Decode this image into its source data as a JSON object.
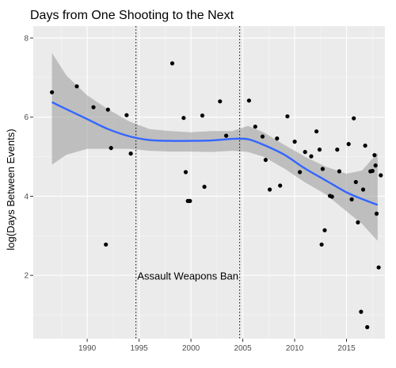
{
  "chart_data": {
    "type": "scatter",
    "title": "Days from One Shooting to the Next",
    "xlabel": "",
    "ylabel": "log(Days Between Events)",
    "xlim": [
      1984.8,
      2018.7
    ],
    "ylim": [
      0.4,
      8.3
    ],
    "x_ticks": [
      1990,
      1995,
      2000,
      2005,
      2010,
      2015
    ],
    "x_tick_labels": [
      "1990",
      "1995",
      "2000",
      "2005",
      "2010",
      "2015"
    ],
    "y_ticks": [
      2,
      4,
      6,
      8
    ],
    "y_tick_labels": [
      "2",
      "4",
      "6",
      "8"
    ],
    "grid": true,
    "background": "#ebebeb",
    "points": {
      "x": [
        1986.6,
        1989.0,
        1990.6,
        1991.8,
        1992.0,
        1992.3,
        1993.8,
        1994.2,
        1998.2,
        1999.3,
        1999.5,
        1999.7,
        1999.9,
        2001.1,
        2001.3,
        2002.8,
        2003.4,
        2005.6,
        2006.2,
        2006.9,
        2007.2,
        2007.6,
        2008.3,
        2008.6,
        2009.3,
        2010.0,
        2010.5,
        2011.0,
        2011.6,
        2012.1,
        2012.4,
        2012.6,
        2012.7,
        2012.9,
        2013.4,
        2013.6,
        2014.1,
        2014.3,
        2015.2,
        2015.5,
        2015.7,
        2015.9,
        2016.1,
        2016.4,
        2016.6,
        2016.8,
        2017.0,
        2017.3,
        2017.5,
        2017.7,
        2017.8,
        2017.9,
        2018.1,
        2018.3
      ],
      "y": [
        6.63,
        6.78,
        6.25,
        2.78,
        6.19,
        5.22,
        6.05,
        5.08,
        7.36,
        5.98,
        4.61,
        3.88,
        3.88,
        6.04,
        4.24,
        6.4,
        5.53,
        6.42,
        5.76,
        5.51,
        4.92,
        4.17,
        5.46,
        4.27,
        6.02,
        5.38,
        4.61,
        5.12,
        5.01,
        5.64,
        5.18,
        2.78,
        4.69,
        3.14,
        4.01,
        3.99,
        5.18,
        4.63,
        5.32,
        3.92,
        5.97,
        4.36,
        3.34,
        1.08,
        4.17,
        5.28,
        0.69,
        4.63,
        4.64,
        5.04,
        4.78,
        3.56,
        2.2,
        4.53
      ]
    },
    "series": [
      {
        "x": [
          1986.6,
          1988.0,
          1990.0,
          1992.0,
          1994.0,
          1996.0,
          1998.0,
          2000.0,
          2002.0,
          2004.0,
          2005.5,
          2007.0,
          2009.0,
          2011.0,
          2013.0,
          2015.0,
          2016.5,
          2018.0
        ],
        "y": [
          6.38,
          6.2,
          5.95,
          5.7,
          5.52,
          5.42,
          5.4,
          5.4,
          5.41,
          5.45,
          5.44,
          5.3,
          5.05,
          4.7,
          4.4,
          4.1,
          3.93,
          3.78
        ],
        "color": "#3366ff"
      }
    ],
    "band_upper": [
      7.62,
      7.05,
      6.55,
      6.2,
      5.9,
      5.7,
      5.65,
      5.62,
      5.65,
      5.65,
      5.78,
      5.62,
      5.3,
      5.0,
      4.75,
      4.57,
      4.65,
      5.1
    ],
    "band_lower": [
      4.8,
      5.05,
      5.2,
      5.2,
      5.2,
      5.15,
      5.13,
      5.13,
      5.12,
      5.15,
      5.12,
      5.0,
      4.7,
      4.35,
      4.05,
      3.62,
      3.3,
      2.87
    ],
    "band_color": "#999999",
    "vlines": [
      {
        "x": 1994.7,
        "style": "dotted"
      },
      {
        "x": 2004.7,
        "style": "dotted"
      }
    ],
    "annotations": [
      {
        "text": "Assault Weapons Ban",
        "x": 1999.7,
        "y": 1.98
      }
    ]
  }
}
